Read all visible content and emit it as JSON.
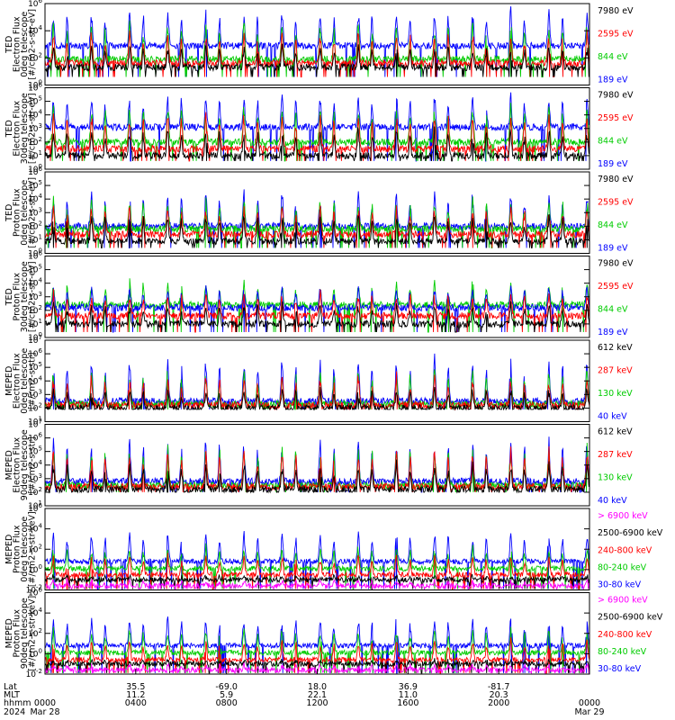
{
  "chart_data": {
    "type": "line",
    "panels": [
      {
        "ylabel": [
          "TED",
          "Electron Flux",
          "0deg telescope",
          "[#/cm2-s-str-eV]"
        ],
        "ylim_exp": [
          0,
          6
        ],
        "yticks": [
          0,
          2,
          4,
          6
        ],
        "legend": [
          {
            "label": "7980 eV",
            "color": "#000000"
          },
          {
            "label": "2595 eV",
            "color": "#ff0000"
          },
          {
            "label": "844 eV",
            "color": "#00cc00"
          },
          {
            "label": "189 eV",
            "color": "#0000ff"
          }
        ],
        "series_levels": [
          1.3,
          1.6,
          1.9,
          2.9
        ],
        "series_peaks": [
          3.0,
          4.2,
          4.8,
          5.7
        ],
        "clip_floor": 0.6
      },
      {
        "ylabel": [
          "TED",
          "Electron Flux",
          "30deg telescope",
          "[#/cm2-s-str-eV]"
        ],
        "ylim_exp": [
          0,
          6
        ],
        "yticks": [
          0,
          1,
          2,
          3,
          4,
          5,
          6
        ],
        "legend": [
          {
            "label": "7980 eV",
            "color": "#000000"
          },
          {
            "label": "2595 eV",
            "color": "#ff0000"
          },
          {
            "label": "844 eV",
            "color": "#00cc00"
          },
          {
            "label": "189 eV",
            "color": "#0000ff"
          }
        ],
        "series_levels": [
          1.0,
          1.5,
          2.0,
          3.1
        ],
        "series_peaks": [
          3.2,
          4.3,
          4.8,
          5.6
        ],
        "clip_floor": 0.6
      },
      {
        "ylabel": [
          "TED",
          "Proton Flux",
          "0deg telescope",
          "[#/cm2-s-str-eV]"
        ],
        "ylim_exp": [
          0,
          6
        ],
        "yticks": [
          0,
          1,
          2,
          3,
          4,
          5,
          6
        ],
        "legend": [
          {
            "label": "7980 eV",
            "color": "#000000"
          },
          {
            "label": "2595 eV",
            "color": "#ff0000"
          },
          {
            "label": "844 eV",
            "color": "#00cc00"
          },
          {
            "label": "189 eV",
            "color": "#0000ff"
          }
        ],
        "series_levels": [
          0.9,
          1.4,
          1.8,
          2.0
        ],
        "series_peaks": [
          3.0,
          3.6,
          4.2,
          4.6
        ],
        "clip_floor": 0.4
      },
      {
        "ylabel": [
          "TED",
          "Proton Flux",
          "30deg telescope",
          "[#/cm2-s-str-eV]"
        ],
        "ylim_exp": [
          0,
          6
        ],
        "yticks": [
          0,
          1,
          2,
          3,
          4,
          5,
          6
        ],
        "legend": [
          {
            "label": "7980 eV",
            "color": "#000000"
          },
          {
            "label": "2595 eV",
            "color": "#ff0000"
          },
          {
            "label": "844 eV",
            "color": "#00cc00"
          },
          {
            "label": "189 eV",
            "color": "#0000ff"
          }
        ],
        "series_levels": [
          1.0,
          1.6,
          2.4,
          2.2
        ],
        "series_peaks": [
          2.6,
          3.4,
          4.2,
          3.8
        ],
        "clip_floor": 0.4
      },
      {
        "ylabel": [
          "MEPED",
          "Electron Flux",
          "0deg telescope",
          "[#/cm2-s-str]"
        ],
        "ylim_exp": [
          1,
          7
        ],
        "yticks": [
          1,
          2,
          3,
          4,
          5,
          6,
          7
        ],
        "legend": [
          {
            "label": "612 keV",
            "color": "#000000"
          },
          {
            "label": "287 keV",
            "color": "#ff0000"
          },
          {
            "label": "130 keV",
            "color": "#00cc00"
          },
          {
            "label": "40 keV",
            "color": "#0000ff"
          }
        ],
        "series_levels": [
          2.0,
          2.2,
          2.3,
          2.5
        ],
        "series_peaks": [
          3.5,
          4.5,
          5.0,
          5.9
        ],
        "clip_floor": 1.9
      },
      {
        "ylabel": [
          "MEPED",
          "Electron Flux",
          "90deg telescope",
          "[#/cm2-s-str]"
        ],
        "ylim_exp": [
          1,
          7
        ],
        "yticks": [
          1,
          2,
          3,
          4,
          5,
          6,
          7
        ],
        "legend": [
          {
            "label": "612 keV",
            "color": "#000000"
          },
          {
            "label": "287 keV",
            "color": "#ff0000"
          },
          {
            "label": "130 keV",
            "color": "#00cc00"
          },
          {
            "label": "40 keV",
            "color": "#0000ff"
          }
        ],
        "series_levels": [
          2.2,
          2.4,
          2.5,
          2.8
        ],
        "series_peaks": [
          4.3,
          5.3,
          5.6,
          6.1
        ],
        "clip_floor": 2.0
      },
      {
        "ylabel": [
          "MEPED",
          "Proton Flux",
          "0deg telescope",
          "[#/cm2-s-str-keV]"
        ],
        "ylim_exp": [
          -2,
          6
        ],
        "yticks": [
          -2,
          0,
          2,
          4,
          6
        ],
        "legend": [
          {
            "label": "> 6900 keV",
            "color": "#ff00ff"
          },
          {
            "label": "2500-6900 keV",
            "color": "#000000"
          },
          {
            "label": "240-800 keV",
            "color": "#ff0000"
          },
          {
            "label": "80-240 keV",
            "color": "#00cc00"
          },
          {
            "label": "30-80 keV",
            "color": "#0000ff"
          }
        ],
        "series_levels": [
          -1.6,
          -1.0,
          -0.5,
          0.1,
          0.8
        ],
        "series_peaks": [
          -1.0,
          -0.6,
          1.5,
          2.4,
          3.9
        ],
        "clip_floor": -1.9
      },
      {
        "ylabel": [
          "MEPED",
          "Proton Flux",
          "90deg telescope",
          "[#/cm2-s-str-keV]"
        ],
        "ylim_exp": [
          -2,
          6
        ],
        "yticks": [
          -2,
          0,
          2,
          4,
          6
        ],
        "legend": [
          {
            "label": "> 6900 keV",
            "color": "#ff00ff"
          },
          {
            "label": "2500-6900 keV",
            "color": "#000000"
          },
          {
            "label": "240-800 keV",
            "color": "#ff0000"
          },
          {
            "label": "80-240 keV",
            "color": "#00cc00"
          },
          {
            "label": "30-80 keV",
            "color": "#0000ff"
          }
        ],
        "series_levels": [
          -1.6,
          -1.0,
          -0.6,
          0.1,
          0.8
        ],
        "series_peaks": [
          -1.0,
          -0.6,
          1.4,
          2.6,
          3.8
        ],
        "clip_floor": -1.9
      }
    ],
    "x_axis": {
      "row_labels": [
        "Lat",
        "MLT",
        "hhmm",
        "2024"
      ],
      "ticks": [
        {
          "lat": "",
          "mlt": "",
          "hhmm": "0000",
          "date": "Mar 28"
        },
        {
          "lat": "35.5",
          "mlt": "11.2",
          "hhmm": "0400",
          "date": ""
        },
        {
          "lat": "-69.0",
          "mlt": "5.9",
          "hhmm": "0800",
          "date": ""
        },
        {
          "lat": "18.0",
          "mlt": "22.1",
          "hhmm": "1200",
          "date": ""
        },
        {
          "lat": "36.9",
          "mlt": "11.0",
          "hhmm": "1600",
          "date": ""
        },
        {
          "lat": "-81.7",
          "mlt": "20.3",
          "hhmm": "2000",
          "date": ""
        },
        {
          "lat": "",
          "mlt": "",
          "hhmm": "0000",
          "date": "Mar 29"
        }
      ],
      "xlim_hours": [
        0,
        24
      ],
      "orbit_period_hours": 1.68
    },
    "grid": false
  }
}
